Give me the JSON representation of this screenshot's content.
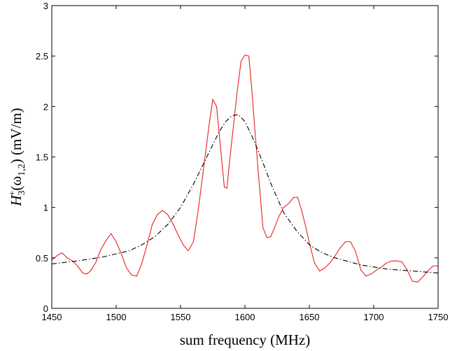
{
  "chart_data": {
    "type": "line",
    "xlabel": "sum frequency (MHz)",
    "ylabel": {
      "main": "H",
      "sub": "3",
      "sup": "+",
      "arg_open": "(ω",
      "arg_sub": "1,2",
      "arg_close": ")",
      "unit": " (mV/m)"
    },
    "xlim": [
      1450,
      1750
    ],
    "ylim": [
      0,
      3
    ],
    "xticks": [
      1450,
      1500,
      1550,
      1600,
      1650,
      1700,
      1750
    ],
    "yticks": [
      0,
      0.5,
      1,
      1.5,
      2,
      2.5,
      3
    ],
    "ytick_labels": [
      "0",
      "0.5",
      "1",
      "1.5",
      "2",
      "2.5",
      "3"
    ],
    "grid": false,
    "series": [
      {
        "color": "#e8201c",
        "style": "solid",
        "x": [
          1450,
          1455,
          1458,
          1462,
          1466,
          1470,
          1474,
          1477,
          1480,
          1484,
          1488,
          1492,
          1496,
          1500,
          1504,
          1508,
          1512,
          1516,
          1520,
          1524,
          1528,
          1532,
          1536,
          1540,
          1544,
          1548,
          1552,
          1556,
          1560,
          1564,
          1568,
          1572,
          1575,
          1578,
          1581,
          1584,
          1586,
          1588,
          1591,
          1594,
          1597,
          1600,
          1603,
          1605,
          1608,
          1611,
          1614,
          1617,
          1620,
          1623,
          1626,
          1630,
          1634,
          1638,
          1641,
          1644,
          1647,
          1650,
          1654,
          1658,
          1662,
          1666,
          1670,
          1674,
          1678,
          1682,
          1686,
          1690,
          1694,
          1698,
          1702,
          1706,
          1710,
          1714,
          1718,
          1722,
          1726,
          1730,
          1734,
          1738,
          1742,
          1746,
          1750
        ],
        "y": [
          0.48,
          0.53,
          0.55,
          0.5,
          0.47,
          0.42,
          0.35,
          0.34,
          0.37,
          0.45,
          0.58,
          0.67,
          0.74,
          0.66,
          0.54,
          0.4,
          0.33,
          0.32,
          0.45,
          0.63,
          0.83,
          0.93,
          0.97,
          0.93,
          0.84,
          0.73,
          0.63,
          0.57,
          0.66,
          1.0,
          1.4,
          1.8,
          2.07,
          2.0,
          1.6,
          1.2,
          1.19,
          1.45,
          1.8,
          2.15,
          2.45,
          2.51,
          2.5,
          2.22,
          1.72,
          1.25,
          0.8,
          0.7,
          0.71,
          0.8,
          0.9,
          1.0,
          1.04,
          1.1,
          1.1,
          0.97,
          0.82,
          0.65,
          0.45,
          0.37,
          0.4,
          0.45,
          0.52,
          0.6,
          0.66,
          0.66,
          0.56,
          0.38,
          0.32,
          0.34,
          0.38,
          0.41,
          0.45,
          0.47,
          0.47,
          0.46,
          0.38,
          0.27,
          0.26,
          0.31,
          0.37,
          0.42,
          0.42
        ]
      },
      {
        "color": "#000000",
        "style": "dashdot",
        "x": [
          1450,
          1470,
          1490,
          1510,
          1520,
          1530,
          1540,
          1550,
          1560,
          1570,
          1575,
          1580,
          1585,
          1590,
          1595,
          1600,
          1605,
          1610,
          1615,
          1620,
          1630,
          1640,
          1650,
          1660,
          1670,
          1690,
          1710,
          1730,
          1750
        ],
        "y": [
          0.44,
          0.47,
          0.51,
          0.57,
          0.63,
          0.71,
          0.83,
          1.0,
          1.23,
          1.49,
          1.62,
          1.75,
          1.85,
          1.91,
          1.92,
          1.85,
          1.72,
          1.57,
          1.41,
          1.24,
          0.95,
          0.77,
          0.63,
          0.55,
          0.5,
          0.43,
          0.39,
          0.37,
          0.35
        ]
      }
    ]
  }
}
